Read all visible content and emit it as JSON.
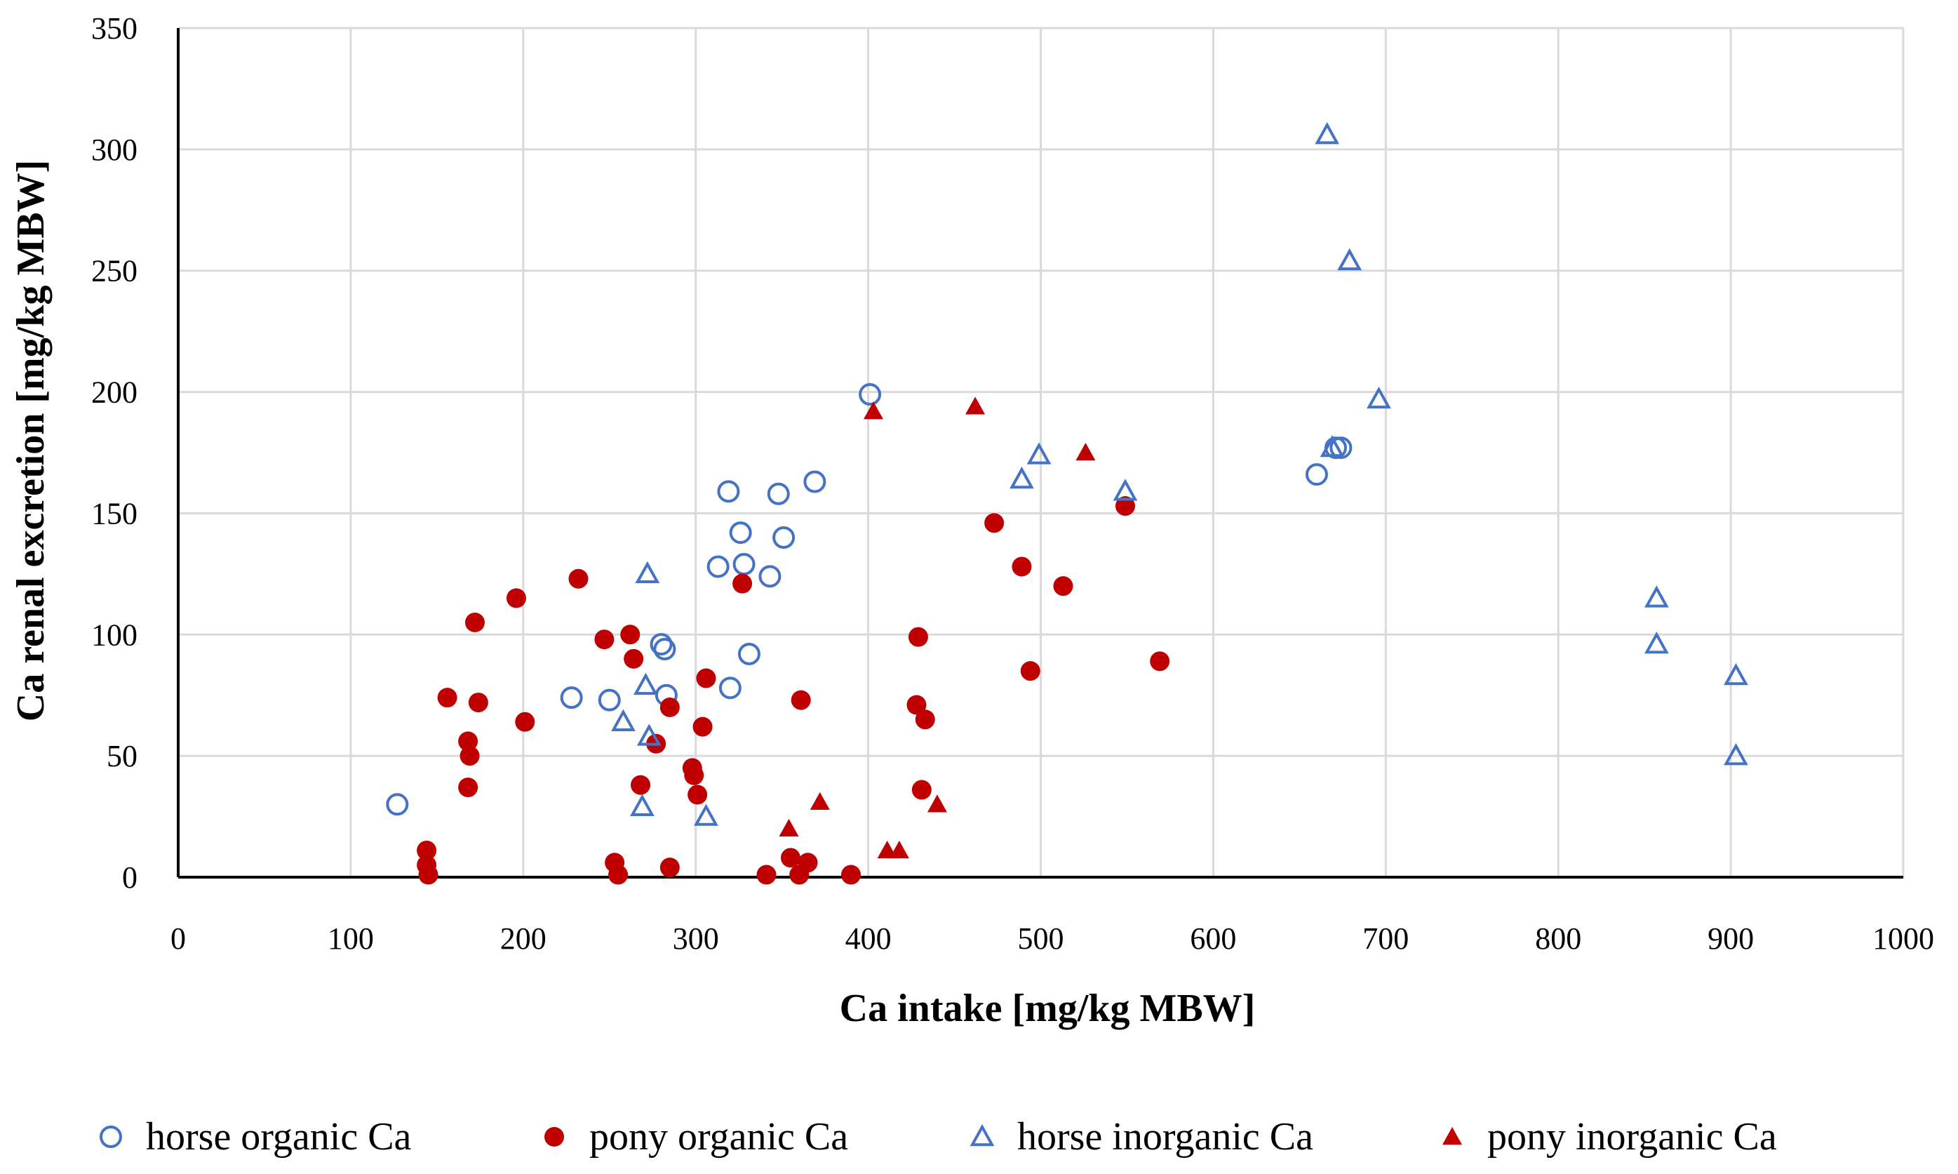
{
  "chart_data": {
    "type": "scatter",
    "title": "",
    "xlabel": "Ca intake [mg/kg MBW]",
    "ylabel": "Ca renal excretion [mg/kg MBW]",
    "xlim": [
      0,
      1000
    ],
    "ylim": [
      0,
      350
    ],
    "xticks": [
      0,
      100,
      200,
      300,
      400,
      500,
      600,
      700,
      800,
      900,
      1000
    ],
    "yticks": [
      0,
      50,
      100,
      150,
      200,
      250,
      300,
      350
    ],
    "grid": true,
    "legend_position": "bottom",
    "colors": {
      "blue": "#4472C4",
      "red": "#C00000"
    },
    "series": [
      {
        "name": "horse organic Ca",
        "marker": "circle-open",
        "color": "#4472C4",
        "points": [
          [
            127,
            30
          ],
          [
            228,
            74
          ],
          [
            250,
            73
          ],
          [
            280,
            96
          ],
          [
            282,
            94
          ],
          [
            283,
            75
          ],
          [
            313,
            128
          ],
          [
            319,
            159
          ],
          [
            320,
            78
          ],
          [
            326,
            142
          ],
          [
            328,
            129
          ],
          [
            331,
            92
          ],
          [
            343,
            124
          ],
          [
            348,
            158
          ],
          [
            351,
            140
          ],
          [
            369,
            163
          ],
          [
            401,
            199
          ],
          [
            660,
            166
          ],
          [
            671,
            177
          ],
          [
            674,
            177
          ]
        ]
      },
      {
        "name": "pony organic Ca",
        "marker": "circle-filled",
        "color": "#C00000",
        "points": [
          [
            144,
            11
          ],
          [
            144,
            5
          ],
          [
            145,
            1
          ],
          [
            156,
            74
          ],
          [
            168,
            37
          ],
          [
            168,
            56
          ],
          [
            169,
            50
          ],
          [
            172,
            105
          ],
          [
            174,
            72
          ],
          [
            196,
            115
          ],
          [
            201,
            64
          ],
          [
            232,
            123
          ],
          [
            247,
            98
          ],
          [
            253,
            6
          ],
          [
            255,
            1
          ],
          [
            262,
            100
          ],
          [
            264,
            90
          ],
          [
            268,
            38
          ],
          [
            277,
            55
          ],
          [
            285,
            70
          ],
          [
            285,
            4
          ],
          [
            298,
            45
          ],
          [
            299,
            42
          ],
          [
            301,
            34
          ],
          [
            304,
            62
          ],
          [
            306,
            82
          ],
          [
            327,
            121
          ],
          [
            341,
            1
          ],
          [
            355,
            8
          ],
          [
            360,
            1
          ],
          [
            361,
            73
          ],
          [
            365,
            6
          ],
          [
            390,
            1
          ],
          [
            428,
            71
          ],
          [
            429,
            99
          ],
          [
            431,
            36
          ],
          [
            433,
            65
          ],
          [
            473,
            146
          ],
          [
            489,
            128
          ],
          [
            494,
            85
          ],
          [
            513,
            120
          ],
          [
            549,
            153
          ],
          [
            569,
            89
          ]
        ]
      },
      {
        "name": "horse inorganic Ca",
        "marker": "triangle-open",
        "color": "#4472C4",
        "points": [
          [
            258,
            64
          ],
          [
            269,
            29
          ],
          [
            271,
            79
          ],
          [
            272,
            125
          ],
          [
            273,
            58
          ],
          [
            306,
            25
          ],
          [
            489,
            164
          ],
          [
            499,
            174
          ],
          [
            549,
            159
          ],
          [
            666,
            306
          ],
          [
            669,
            177
          ],
          [
            679,
            254
          ],
          [
            696,
            197
          ],
          [
            857,
            115
          ],
          [
            857,
            96
          ],
          [
            903,
            83
          ],
          [
            903,
            50
          ]
        ]
      },
      {
        "name": "pony inorganic Ca",
        "marker": "triangle-filled",
        "color": "#C00000",
        "points": [
          [
            354,
            20
          ],
          [
            372,
            31
          ],
          [
            403,
            192
          ],
          [
            411,
            11
          ],
          [
            418,
            11
          ],
          [
            440,
            30
          ],
          [
            462,
            194
          ],
          [
            526,
            175
          ]
        ]
      }
    ]
  }
}
